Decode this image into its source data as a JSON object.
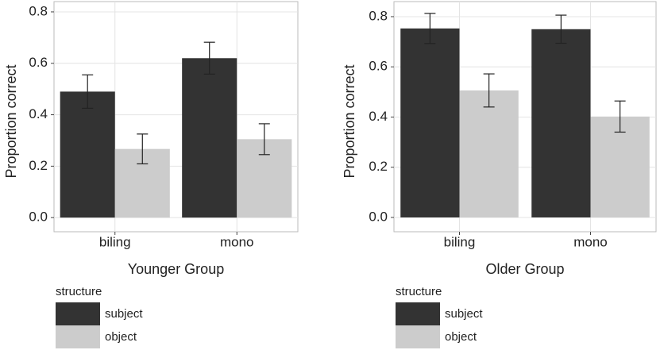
{
  "chart_data": [
    {
      "type": "bar",
      "x_label": "Younger Group",
      "y_label": "Proportion correct",
      "categories": [
        "biling",
        "mono"
      ],
      "series": [
        {
          "name": "subject",
          "color": "#333333",
          "values": [
            0.49,
            0.62
          ],
          "errors": [
            0.065,
            0.062
          ]
        },
        {
          "name": "object",
          "color": "#cccccc",
          "values": [
            0.267,
            0.305
          ],
          "errors": [
            0.058,
            0.06
          ]
        }
      ],
      "ylim": [
        -0.055,
        0.84
      ],
      "yticks": [
        {
          "value": 0,
          "label": "0.0"
        },
        0.2,
        0.4,
        0.6,
        0.8
      ],
      "grid": true,
      "legend_title": "structure",
      "legend": "bottom-left"
    },
    {
      "type": "bar",
      "x_label": "Older Group",
      "y_label": "Proportion correct",
      "categories": [
        "biling",
        "mono"
      ],
      "series": [
        {
          "name": "subject",
          "color": "#333333",
          "values": [
            0.753,
            0.75
          ],
          "errors": [
            0.06,
            0.056
          ]
        },
        {
          "name": "object",
          "color": "#cccccc",
          "values": [
            0.506,
            0.402
          ],
          "errors": [
            0.066,
            0.062
          ]
        }
      ],
      "ylim": [
        -0.057,
        0.86
      ],
      "yticks": [
        {
          "value": 0,
          "label": "0.0"
        },
        0.2,
        0.4,
        0.6,
        0.8
      ],
      "grid": true,
      "legend_title": "structure",
      "legend": "bottom-left"
    }
  ]
}
